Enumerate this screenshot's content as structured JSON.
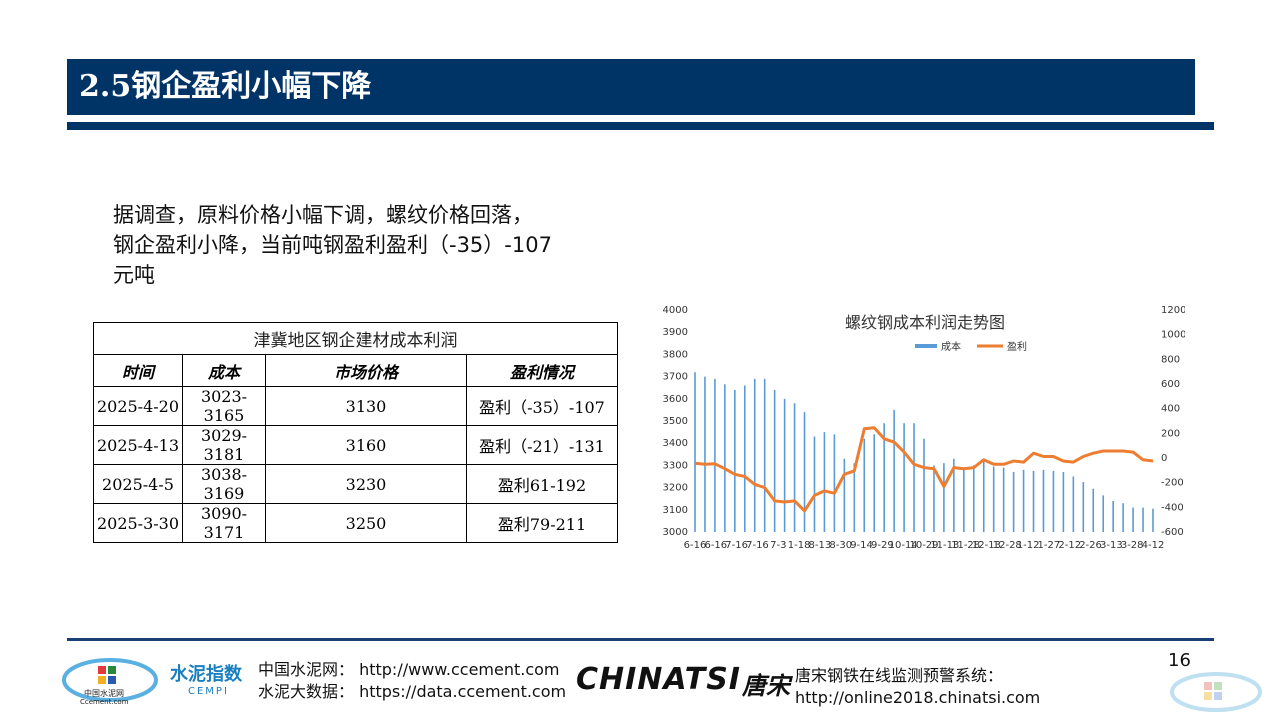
{
  "slide": {
    "title": "2.5钢企盈利小幅下降",
    "intro_lines": [
      "据调查，原料价格小幅下调，螺纹价格回落，",
      "钢企盈利小降，当前吨钢盈利盈利（-35）-107",
      "元吨"
    ],
    "page_number": "16"
  },
  "table": {
    "caption": "津冀地区钢企建材成本利润",
    "headers": [
      "时间",
      "成本",
      "市场价格",
      "盈利情况"
    ],
    "rows": [
      [
        "2025-4-20",
        "3023-3165",
        "3130",
        "盈利（-35）-107"
      ],
      [
        "2025-4-13",
        "3029-3181",
        "3160",
        "盈利（-21）-131"
      ],
      [
        "2025-4-5",
        "3038-3169",
        "3230",
        "盈利61-192"
      ],
      [
        "2025-3-30",
        "3090-3171",
        "3250",
        "盈利79-211"
      ]
    ]
  },
  "chart_data": {
    "type": "bar+line",
    "title": "螺纹钢成本利润走势图",
    "legend": [
      "成本",
      "盈利"
    ],
    "legend_position": "top-center",
    "colors": {
      "cost": "#5b9bd5",
      "profit": "#ed7d31"
    },
    "left_axis": {
      "min": 3000,
      "max": 4000,
      "ticks": [
        "3000",
        "3100",
        "3200",
        "3300",
        "3400",
        "3500",
        "3600",
        "3700",
        "3800",
        "3900",
        "4000"
      ]
    },
    "right_axis": {
      "min": -600,
      "max": 1200,
      "ticks": [
        "-600",
        "-400",
        "-200",
        "0",
        "200",
        "400",
        "600",
        "800",
        "1000",
        "1200"
      ]
    },
    "x_tick_labels": [
      "6-16",
      "6-16",
      "7-16",
      "7-16",
      "7-3",
      "1-18",
      "8-13",
      "8-30",
      "9-14",
      "9-29",
      "10-14",
      "10-29",
      "11-13",
      "11-28",
      "12-13",
      "12-28",
      "1-12",
      "1-27",
      "2-12",
      "2-26",
      "3-13",
      "3-28",
      "4-12"
    ],
    "series": [
      {
        "name": "成本",
        "axis": "left",
        "values": [
          3720,
          3700,
          3690,
          3665,
          3640,
          3660,
          3690,
          3690,
          3640,
          3600,
          3580,
          3540,
          3430,
          3450,
          3440,
          3330,
          3310,
          3420,
          3440,
          3490,
          3550,
          3490,
          3490,
          3420,
          3300,
          3310,
          3330,
          3290,
          3300,
          3320,
          3295,
          3290,
          3270,
          3280,
          3275,
          3280,
          3275,
          3270,
          3250,
          3225,
          3195,
          3165,
          3140,
          3130,
          3110,
          3110,
          3105
        ]
      },
      {
        "name": "盈利",
        "axis": "left",
        "values": [
          3310,
          3305,
          3307,
          3285,
          3260,
          3250,
          3215,
          3200,
          3140,
          3135,
          3140,
          3095,
          3165,
          3185,
          3175,
          3260,
          3275,
          3465,
          3470,
          3420,
          3405,
          3360,
          3305,
          3290,
          3285,
          3205,
          3290,
          3285,
          3290,
          3325,
          3305,
          3305,
          3320,
          3315,
          3355,
          3340,
          3340,
          3320,
          3315,
          3340,
          3355,
          3365,
          3365,
          3365,
          3360,
          3325,
          3320
        ]
      }
    ]
  },
  "footer": {
    "logo1_caption": "中国水泥网",
    "logo1_sub": "Ccement.com",
    "logo2_main": "水泥指数",
    "logo2_sub": "CEMPI",
    "cement_lines": [
      "中国水泥网：  http://www.ccement.com",
      "水泥大数据：  https://data.ccement.com"
    ],
    "chinatsi": "CHINATSI",
    "chinatsi_cn": "唐宋",
    "chinatsi_lines": [
      "唐宋钢铁在线监测预警系统：",
      "http://online2018.chinatsi.com"
    ]
  }
}
